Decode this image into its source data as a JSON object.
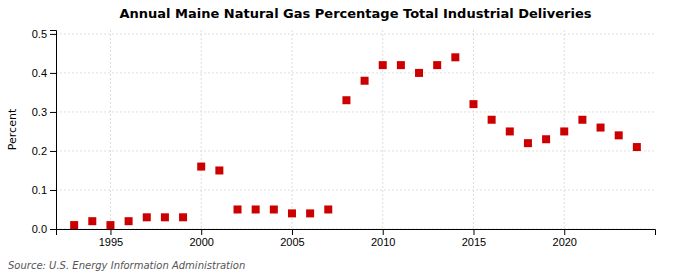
{
  "chart_data": {
    "type": "scatter",
    "title": "Annual Maine Natural Gas Percentage Total Industrial Deliveries",
    "ylabel": "Percent",
    "annotations": [
      "Source: U.S. Energy Information Administration"
    ],
    "x": [
      1993,
      1994,
      1995,
      1996,
      1997,
      1998,
      1999,
      2000,
      2001,
      2002,
      2003,
      2004,
      2005,
      2006,
      2007,
      2008,
      2009,
      2010,
      2011,
      2012,
      2013,
      2014,
      2015,
      2016,
      2017,
      2018,
      2019,
      2020,
      2021,
      2022,
      2023,
      2024
    ],
    "values": [
      0.01,
      0.02,
      0.01,
      0.02,
      0.03,
      0.03,
      0.03,
      0.16,
      0.15,
      0.05,
      0.05,
      0.05,
      0.04,
      0.04,
      0.05,
      0.33,
      0.38,
      0.42,
      0.42,
      0.4,
      0.42,
      0.44,
      0.32,
      0.28,
      0.25,
      0.22,
      0.23,
      0.25,
      0.28,
      0.26,
      0.24,
      0.21
    ],
    "color": "#cc0000",
    "marker": "square",
    "xlim": [
      1992,
      2025
    ],
    "ylim": [
      0.0,
      0.51
    ],
    "xticks": [
      1995,
      2000,
      2005,
      2010,
      2015,
      2020
    ],
    "yticks": [
      {
        "value": 0.0,
        "label": "0.0"
      },
      0.1,
      0.2,
      0.3,
      0.4,
      0.5
    ],
    "grid": true
  }
}
